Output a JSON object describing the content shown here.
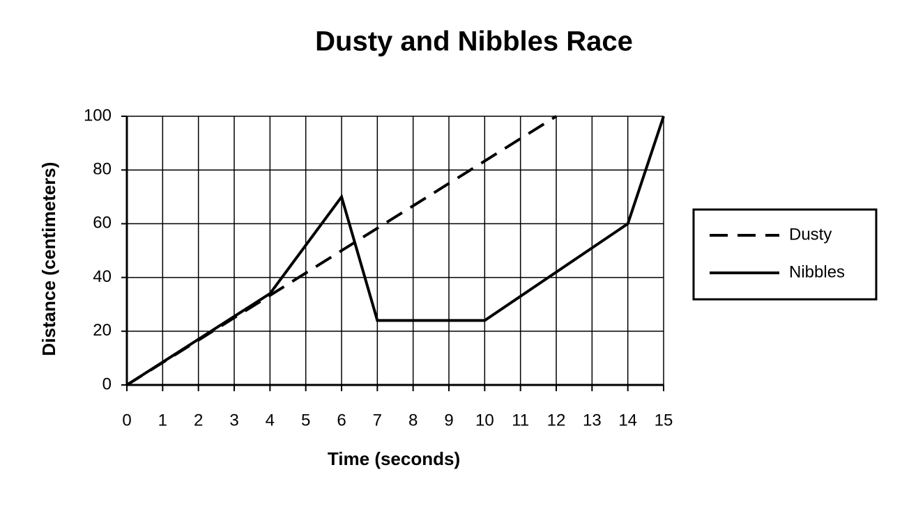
{
  "chart_data": {
    "type": "line",
    "title": "Dusty and Nibbles Race",
    "x_label": "Time (seconds)",
    "y_label": "Distance (centimeters)",
    "series": [
      {
        "name": "Dusty",
        "color": "#000000",
        "line_style": "dashed",
        "x": [
          0,
          12
        ],
        "values": [
          0,
          100
        ]
      },
      {
        "name": "Nibbles",
        "color": "#000000",
        "line_style": "solid",
        "x": [
          0,
          4,
          6,
          7,
          10,
          14,
          15
        ],
        "values": [
          0,
          34,
          70,
          24,
          24,
          60,
          100
        ]
      }
    ],
    "xlim": [
      0,
      15
    ],
    "xticks": [
      0,
      1,
      2,
      3,
      4,
      5,
      6,
      7,
      8,
      9,
      10,
      11,
      12,
      13,
      14,
      15
    ],
    "ylim": [
      0,
      100
    ],
    "yticks": [
      0,
      20,
      40,
      60,
      80,
      100
    ],
    "grid": true,
    "legend": "right"
  }
}
